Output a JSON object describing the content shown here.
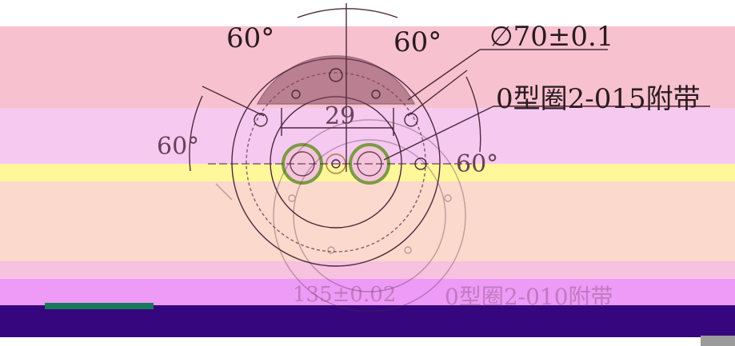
{
  "drawing": {
    "labels": {
      "angle_top_left": "60°",
      "angle_top_right": "60°",
      "angle_left": "60°",
      "angle_right": "60°",
      "diameter": "∅70±0.1",
      "oring_top": "0型圈2-015附带",
      "dim_29": "29",
      "dim_bottom": "135±0.02",
      "oring_bottom": "0型圈2-010附带"
    },
    "colors": {
      "pink_band": "#f7c1cf",
      "lavender_band": "#f6c9f1",
      "yellow_band": "#fff79a",
      "peach_band": "#fbd9cc",
      "magenta_band": "#ee9af7",
      "navy_band": "#35067d",
      "line": "#4c2a3d",
      "connector_ring": "#9fbf6a"
    }
  }
}
